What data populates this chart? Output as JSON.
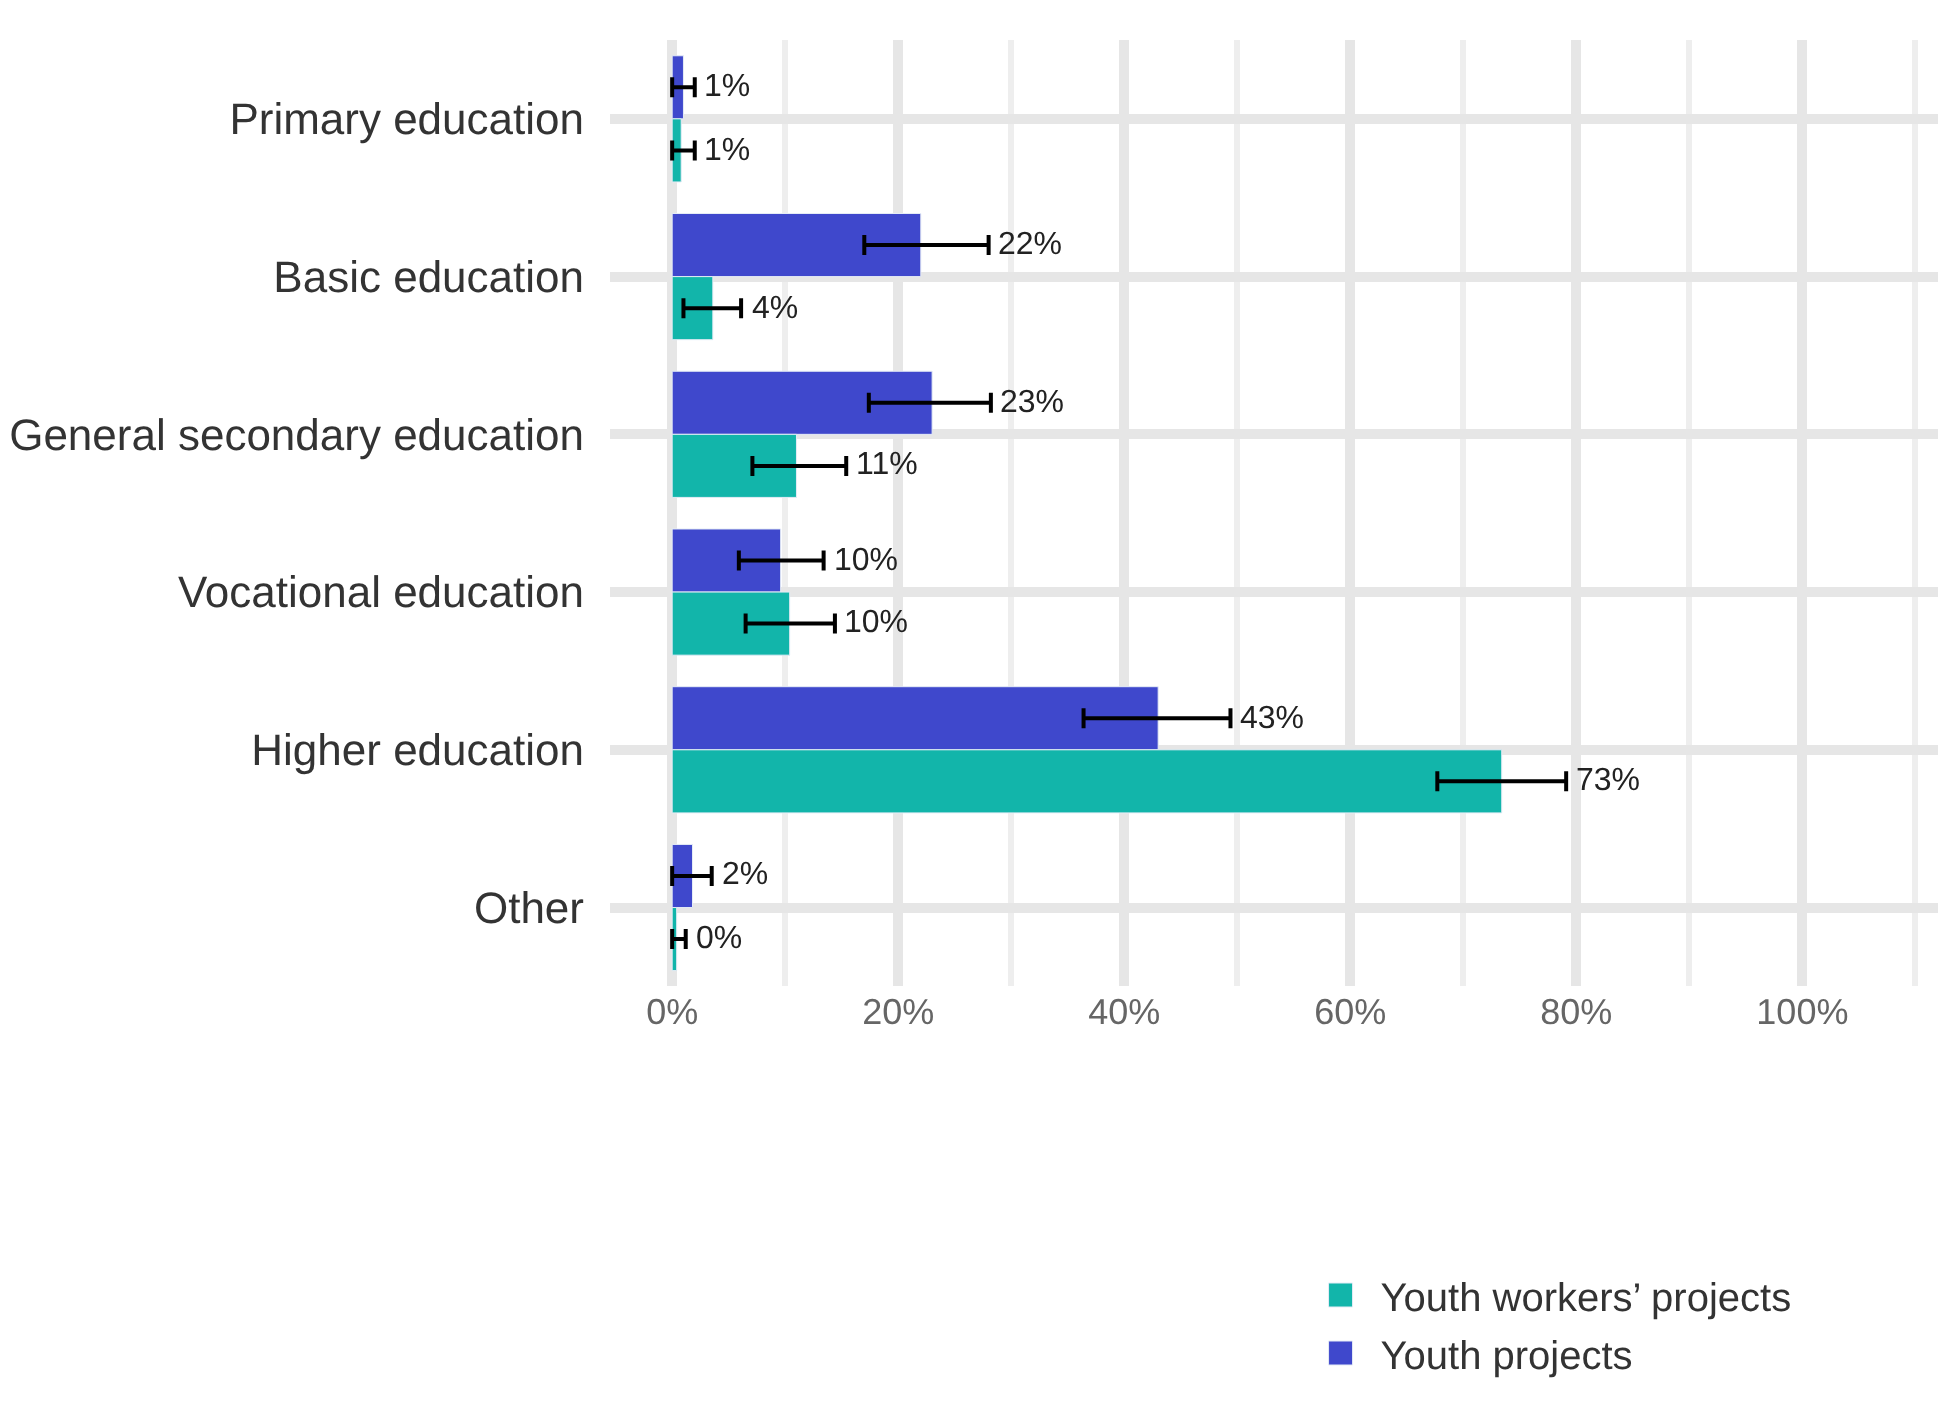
{
  "chart_data": {
    "type": "bar",
    "orientation": "horizontal",
    "categories": [
      "Primary education",
      "Basic education",
      "General secondary education",
      "Vocational education",
      "Higher education",
      "Other"
    ],
    "series": [
      {
        "name": "Youth projects",
        "color": "#3f48cc",
        "values": [
          1,
          22,
          23,
          9.6,
          43,
          1.8
        ],
        "errors": [
          [
            0,
            2
          ],
          [
            17,
            28
          ],
          [
            17.4,
            28.2
          ],
          [
            5.9,
            13.4
          ],
          [
            36.4,
            49.4
          ],
          [
            0,
            3.5
          ]
        ],
        "value_labels": [
          "1%",
          "22%",
          "23%",
          "10%",
          "43%",
          "2%"
        ]
      },
      {
        "name": "Youth workers’ projects",
        "color": "#12b5aa",
        "values": [
          0.8,
          3.6,
          11,
          10.4,
          73.4,
          0.4
        ],
        "errors": [
          [
            0,
            2
          ],
          [
            1,
            6.1
          ],
          [
            7.1,
            15.4
          ],
          [
            6.5,
            14.4
          ],
          [
            67.7,
            79.1
          ],
          [
            0,
            1.2
          ]
        ],
        "value_labels": [
          "1%",
          "4%",
          "11%",
          "10%",
          "73%",
          "0%"
        ]
      }
    ],
    "xlim": [
      -5.5,
      112
    ],
    "xticks": [
      {
        "value": 0,
        "label": "0%"
      },
      {
        "value": 20,
        "label": "20%"
      },
      {
        "value": 40,
        "label": "40%"
      },
      {
        "value": 60,
        "label": "60%"
      },
      {
        "value": 80,
        "label": "80%"
      },
      {
        "value": 100,
        "label": "100%"
      }
    ],
    "grid": true,
    "legend": "bottom"
  }
}
